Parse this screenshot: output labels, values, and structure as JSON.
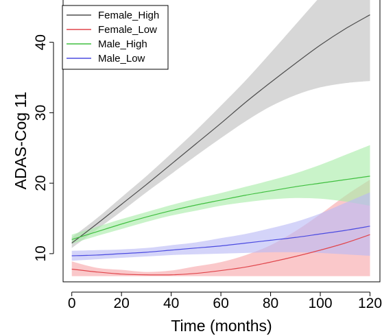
{
  "chart_data": {
    "type": "line",
    "xlabel": "Time (months)",
    "ylabel": "ADAS-Cog 11",
    "xlim": [
      -3.5,
      124
    ],
    "ylim": [
      6,
      46
    ],
    "x_ticks": [
      "0",
      "20",
      "40",
      "60",
      "80",
      "100",
      "120"
    ],
    "y_ticks": [
      "10",
      "20",
      "30",
      "40"
    ],
    "grid": false,
    "legend_position": "top-left",
    "x": [
      0,
      10,
      20,
      30,
      40,
      50,
      60,
      70,
      80,
      90,
      100,
      110,
      120
    ],
    "series": [
      {
        "name": "Female_High",
        "color": "#4d4d4d",
        "band_color": "#bebebe",
        "values": [
          11.5,
          14.2,
          17.0,
          19.8,
          22.7,
          25.6,
          28.5,
          31.5,
          34.3,
          37.0,
          39.6,
          41.9,
          43.9
        ],
        "lower": [
          10.8,
          13.4,
          16.0,
          18.7,
          21.3,
          23.9,
          26.4,
          28.8,
          30.9,
          32.5,
          33.6,
          34.2,
          34.5
        ],
        "upper": [
          12.3,
          15.0,
          18.0,
          21.0,
          24.2,
          27.5,
          31.0,
          34.6,
          38.5,
          42.5,
          46.5,
          50.5,
          54.0
        ]
      },
      {
        "name": "Female_Low",
        "color": "#e0454b",
        "band_color": "#f7a7a9",
        "values": [
          7.8,
          7.4,
          7.1,
          7.0,
          7.0,
          7.2,
          7.6,
          8.1,
          8.8,
          9.6,
          10.5,
          11.5,
          12.7
        ],
        "lower": [
          6.8,
          6.8,
          6.8,
          6.8,
          6.8,
          6.8,
          6.8,
          6.8,
          6.8,
          6.8,
          6.8,
          6.8,
          6.8
        ],
        "upper": [
          8.9,
          8.0,
          7.7,
          7.4,
          7.6,
          8.2,
          8.8,
          9.8,
          11.2,
          13.2,
          15.6,
          18.2,
          20.5
        ]
      },
      {
        "name": "Male_High",
        "color": "#3fbf3f",
        "band_color": "#a8eca8",
        "values": [
          12.0,
          13.1,
          14.2,
          15.2,
          16.1,
          16.9,
          17.6,
          18.3,
          18.9,
          19.5,
          20.0,
          20.5,
          21.0
        ],
        "lower": [
          11.4,
          12.5,
          13.5,
          14.5,
          15.4,
          16.1,
          16.8,
          17.3,
          17.7,
          17.9,
          17.8,
          17.4,
          16.8
        ],
        "upper": [
          12.7,
          13.8,
          14.9,
          15.9,
          16.9,
          17.8,
          18.6,
          19.5,
          20.4,
          21.4,
          22.6,
          24.0,
          25.4
        ]
      },
      {
        "name": "Male_Low",
        "color": "#4a4ae0",
        "band_color": "#b9b9f5",
        "values": [
          9.7,
          9.8,
          10.0,
          10.2,
          10.5,
          10.8,
          11.1,
          11.5,
          11.9,
          12.3,
          12.8,
          13.3,
          13.9
        ],
        "lower": [
          9.0,
          9.2,
          9.4,
          9.6,
          9.8,
          9.9,
          10.0,
          10.1,
          10.2,
          10.2,
          10.1,
          9.9,
          9.7
        ],
        "upper": [
          10.4,
          10.5,
          10.6,
          10.8,
          11.2,
          11.6,
          12.2,
          12.8,
          13.6,
          14.5,
          15.7,
          17.2,
          18.7
        ]
      }
    ]
  }
}
